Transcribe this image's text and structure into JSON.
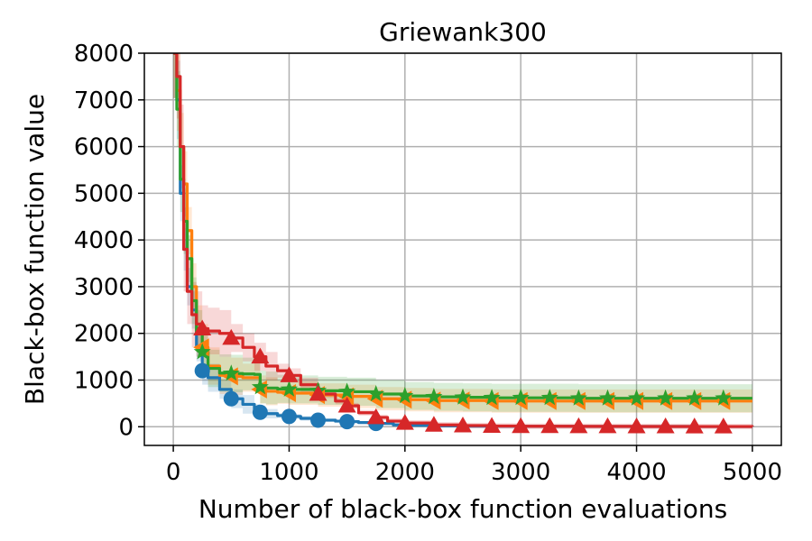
{
  "chart_data": {
    "type": "line",
    "title": "Griewank300",
    "xlabel": "Number of black-box function evaluations",
    "ylabel": "Black-box function value",
    "xlim": [
      -250,
      5250
    ],
    "ylim": [
      -400,
      8000
    ],
    "x_ticks": [
      0,
      1000,
      2000,
      3000,
      4000,
      5000
    ],
    "y_ticks": [
      0,
      1000,
      2000,
      3000,
      4000,
      5000,
      6000,
      7000,
      8000
    ],
    "x_tick_labels": [
      "0",
      "1000",
      "2000",
      "3000",
      "4000",
      "5000"
    ],
    "y_tick_labels": [
      "0",
      "1000",
      "2000",
      "3000",
      "4000",
      "5000",
      "6000",
      "7000",
      "8000"
    ],
    "grid": true,
    "series": [
      {
        "color": "#1f77b4",
        "marker": "circle",
        "x": [
          0,
          30,
          60,
          90,
          120,
          160,
          200,
          250,
          300,
          400,
          500,
          600,
          700,
          750,
          800,
          900,
          1000,
          1100,
          1250,
          1400,
          1500,
          1600,
          1750,
          1900,
          2000,
          2250,
          2500,
          2750,
          3000,
          3500,
          4000,
          4500,
          5000
        ],
        "y": [
          8000,
          7000,
          5000,
          3800,
          3000,
          2500,
          1700,
          1200,
          1050,
          800,
          600,
          480,
          380,
          310,
          280,
          240,
          220,
          180,
          140,
          120,
          110,
          90,
          70,
          40,
          30,
          20,
          12,
          10,
          8,
          6,
          5,
          4,
          3
        ],
        "band": [
          500,
          400,
          300,
          200,
          100,
          50,
          20
        ],
        "marker_x": [
          250,
          500,
          750,
          1000,
          1250,
          1500,
          1750
        ]
      },
      {
        "color": "#ff7f0e",
        "marker": "triangle-left",
        "x": [
          0,
          30,
          60,
          90,
          120,
          160,
          200,
          250,
          300,
          400,
          500,
          600,
          700,
          750,
          800,
          900,
          1000,
          1250,
          1500,
          1750,
          2000,
          2250,
          2500,
          2750,
          3000,
          3500,
          4000,
          4500,
          5000
        ],
        "y": [
          8000,
          7200,
          6000,
          5200,
          4200,
          3000,
          2100,
          1700,
          1300,
          1100,
          1080,
          1050,
          1050,
          800,
          760,
          740,
          720,
          680,
          650,
          600,
          580,
          560,
          560,
          550,
          550,
          550,
          550,
          550,
          550
        ],
        "band": [
          700,
          500,
          400,
          300,
          250
        ],
        "marker_x": [
          250,
          500,
          750,
          1000,
          1250,
          1500,
          1750,
          2000,
          2250,
          2500,
          2750,
          3000,
          3250,
          3500,
          3750,
          4000,
          4250,
          4500,
          4750
        ]
      },
      {
        "color": "#2ca02c",
        "marker": "star",
        "x": [
          0,
          30,
          60,
          90,
          120,
          160,
          200,
          250,
          300,
          400,
          500,
          600,
          700,
          750,
          800,
          900,
          1000,
          1250,
          1500,
          1750,
          2000,
          2250,
          2500,
          2750,
          3000,
          3500,
          4000,
          4500,
          5000
        ],
        "y": [
          8000,
          6800,
          5300,
          4400,
          3600,
          2700,
          2000,
          1600,
          1250,
          1150,
          1140,
          1130,
          1120,
          850,
          830,
          810,
          800,
          770,
          750,
          700,
          660,
          640,
          630,
          620,
          620,
          610,
          610,
          610,
          610
        ],
        "band": [
          700,
          500,
          400,
          350,
          300
        ],
        "marker_x": [
          250,
          500,
          750,
          1000,
          1250,
          1500,
          1750,
          2000,
          2250,
          2500,
          2750,
          3000,
          3250,
          3500,
          3750,
          4000,
          4250,
          4500,
          4750
        ]
      },
      {
        "color": "#d62728",
        "marker": "triangle-up",
        "x": [
          0,
          30,
          60,
          90,
          120,
          160,
          200,
          250,
          300,
          400,
          500,
          600,
          700,
          800,
          900,
          1000,
          1100,
          1250,
          1400,
          1500,
          1600,
          1750,
          1850,
          2000,
          2250,
          2500,
          2750,
          3000,
          3500,
          4000,
          4500,
          5000
        ],
        "y": [
          8000,
          7500,
          6000,
          3800,
          2900,
          2400,
          2200,
          2100,
          2050,
          2000,
          1900,
          1700,
          1500,
          1300,
          1200,
          1100,
          900,
          700,
          550,
          450,
          300,
          200,
          120,
          80,
          40,
          25,
          15,
          10,
          8,
          5,
          4,
          3
        ],
        "band": [
          900,
          700,
          500,
          300,
          150,
          60
        ],
        "marker_x": [
          250,
          500,
          750,
          1000,
          1250,
          1500,
          1750,
          2000,
          2250,
          2500,
          2750,
          3000,
          3250,
          3500,
          3750,
          4000,
          4250,
          4500,
          4750
        ]
      }
    ]
  }
}
